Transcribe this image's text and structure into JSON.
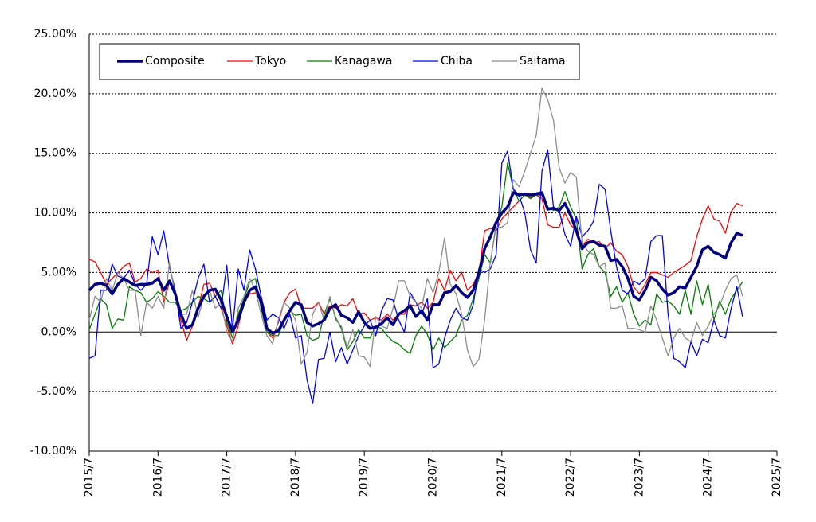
{
  "chart_data": {
    "type": "line",
    "categories": [
      "2015/7",
      null,
      null,
      null,
      null,
      null,
      null,
      null,
      null,
      null,
      null,
      null,
      "2016/7",
      null,
      null,
      null,
      null,
      null,
      null,
      null,
      null,
      null,
      null,
      null,
      "2017/7",
      null,
      null,
      null,
      null,
      null,
      null,
      null,
      null,
      null,
      null,
      null,
      "2018/7",
      null,
      null,
      null,
      null,
      null,
      null,
      null,
      null,
      null,
      null,
      null,
      "2019/7",
      null,
      null,
      null,
      null,
      null,
      null,
      null,
      null,
      null,
      null,
      null,
      "2020/7",
      null,
      null,
      null,
      null,
      null,
      null,
      null,
      null,
      null,
      null,
      null,
      "2021/7",
      null,
      null,
      null,
      null,
      null,
      null,
      null,
      null,
      null,
      null,
      null,
      "2022/7",
      null,
      null,
      null,
      null,
      null,
      null,
      null,
      null,
      null,
      null,
      null,
      "2023/7",
      null,
      null,
      null,
      null,
      null,
      null,
      null,
      null,
      null,
      null,
      null,
      "2024/7",
      null,
      null,
      null,
      null,
      null,
      null,
      null,
      null,
      null,
      null,
      null,
      "2025/7"
    ],
    "series": [
      {
        "name": "Composite",
        "color": "#000080",
        "width": 3.5,
        "values": [
          3.5,
          4.0,
          4.1,
          3.9,
          3.2,
          4.0,
          4.5,
          4.2,
          3.9,
          4.0,
          4.0,
          4.1,
          4.5,
          3.5,
          4.3,
          3.2,
          1.5,
          0.3,
          0.6,
          2.0,
          3.0,
          3.5,
          3.6,
          2.7,
          1.3,
          0.0,
          1.0,
          2.5,
          3.5,
          3.8,
          2.5,
          0.3,
          -0.1,
          0.1,
          1.0,
          1.8,
          2.5,
          2.3,
          0.8,
          0.5,
          0.7,
          1.0,
          2.0,
          2.3,
          1.4,
          1.2,
          0.8,
          1.7,
          0.8,
          0.3,
          0.4,
          0.7,
          1.2,
          0.6,
          1.5,
          1.8,
          2.2,
          1.3,
          1.8,
          1.0,
          2.3,
          2.3,
          3.3,
          3.4,
          3.9,
          3.3,
          2.9,
          3.5,
          5.0,
          7.0,
          8.0,
          9.2,
          10.0,
          10.5,
          11.7,
          11.5,
          11.6,
          11.5,
          11.6,
          11.7,
          10.3,
          10.4,
          10.2,
          10.8,
          9.8,
          8.5,
          7.0,
          7.5,
          7.6,
          7.3,
          7.2,
          6.0,
          6.1,
          5.5,
          4.5,
          3.0,
          2.7,
          3.5,
          4.6,
          4.3,
          3.6,
          3.1,
          3.3,
          3.8,
          3.7,
          4.6,
          5.5,
          6.9,
          7.2,
          6.7,
          6.5,
          6.2,
          7.5,
          8.3,
          8.1,
          null,
          null,
          null,
          null,
          null,
          null
        ]
      },
      {
        "name": "Tokyo",
        "color": "#ff0000",
        "width": 1.3,
        "values": [
          6.1,
          5.9,
          5.0,
          4.0,
          4.5,
          5.0,
          5.5,
          5.8,
          4.2,
          4.5,
          5.3,
          5.0,
          5.2,
          2.5,
          4.2,
          3.2,
          1.0,
          -0.7,
          0.5,
          2.0,
          4.0,
          4.1,
          3.0,
          2.0,
          0.5,
          -1.0,
          0.5,
          2.5,
          3.2,
          3.3,
          2.5,
          0.0,
          -0.5,
          0.8,
          2.5,
          3.3,
          3.6,
          2.0,
          2.0,
          2.0,
          2.5,
          1.5,
          2.2,
          2.0,
          2.3,
          2.2,
          2.8,
          1.5,
          1.6,
          1.0,
          1.2,
          1.0,
          1.5,
          1.0,
          1.5,
          1.5,
          2.3,
          2.2,
          2.5,
          2.0,
          2.5,
          4.5,
          3.5,
          5.2,
          4.3,
          5.0,
          3.5,
          4.0,
          5.0,
          8.5,
          8.7,
          8.5,
          9.5,
          10.0,
          10.5,
          11.0,
          11.5,
          11.3,
          11.5,
          11.2,
          9.0,
          8.8,
          8.8,
          10.0,
          9.0,
          8.5,
          7.2,
          7.8,
          7.5,
          7.6,
          7.0,
          7.5,
          6.8,
          6.5,
          5.5,
          3.8,
          3.2,
          4.0,
          5.0,
          5.0,
          4.8,
          4.6,
          5.0,
          5.3,
          5.6,
          6.0,
          8.0,
          9.5,
          10.6,
          9.5,
          9.3,
          8.3,
          10.1,
          10.8,
          10.6,
          null,
          null,
          null,
          null,
          null,
          null
        ]
      },
      {
        "name": "Kanagawa",
        "color": "#008000",
        "width": 1.3,
        "values": [
          0.2,
          1.5,
          2.8,
          2.3,
          0.3,
          1.1,
          1.0,
          3.8,
          3.5,
          3.3,
          2.5,
          2.8,
          3.4,
          3.0,
          2.5,
          2.5,
          1.8,
          2.0,
          2.5,
          3.0,
          2.8,
          2.5,
          3.0,
          3.5,
          0.8,
          -0.5,
          1.5,
          2.8,
          4.2,
          4.5,
          2.0,
          0.0,
          -0.3,
          -0.3,
          1.0,
          1.8,
          1.4,
          1.5,
          -0.3,
          -0.7,
          -0.5,
          1.5,
          2.8,
          1.2,
          0.3,
          -1.5,
          -0.8,
          0.2,
          -0.5,
          -0.5,
          0.5,
          0.3,
          -0.3,
          -0.8,
          -1.0,
          -1.5,
          -1.8,
          -0.3,
          0.5,
          -0.2,
          -1.5,
          -0.5,
          -1.3,
          -0.8,
          -0.3,
          1.0,
          1.4,
          2.8,
          4.5,
          6.5,
          5.8,
          9.0,
          10.5,
          14.2,
          12.0,
          11.0,
          11.5,
          11.2,
          11.5,
          11.5,
          10.5,
          10.2,
          10.5,
          11.8,
          10.5,
          9.5,
          5.3,
          6.5,
          7.0,
          5.5,
          5.0,
          3.0,
          3.8,
          2.5,
          3.3,
          1.5,
          0.5,
          1.0,
          0.6,
          3.2,
          2.5,
          2.6,
          2.2,
          1.5,
          3.5,
          1.5,
          4.3,
          2.3,
          4.0,
          1.0,
          2.6,
          1.5,
          2.8,
          3.5,
          4.2,
          null,
          null,
          null,
          null,
          null,
          null
        ]
      },
      {
        "name": "Chiba",
        "color": "#0000ff",
        "width": 1.3,
        "values": [
          -2.2,
          -2.0,
          3.5,
          3.5,
          5.7,
          4.7,
          4.5,
          5.2,
          4.0,
          3.5,
          4.0,
          8.0,
          6.5,
          8.5,
          5.5,
          3.5,
          0.3,
          0.8,
          2.5,
          4.5,
          5.7,
          2.5,
          3.0,
          2.0,
          5.6,
          0.2,
          5.3,
          3.5,
          6.9,
          5.3,
          3.0,
          1.0,
          1.5,
          1.2,
          0.3,
          1.5,
          -0.5,
          -0.3,
          -4.0,
          -6.0,
          -2.3,
          -2.2,
          0.0,
          -2.5,
          -1.3,
          -2.7,
          -1.5,
          -0.3,
          0.5,
          1.0,
          -0.3,
          1.8,
          2.8,
          2.7,
          1.0,
          0.0,
          3.3,
          2.5,
          1.5,
          2.8,
          -3.0,
          -2.7,
          -0.5,
          1.0,
          2.0,
          1.2,
          1.0,
          2.3,
          5.3,
          5.0,
          5.3,
          6.5,
          14.2,
          15.2,
          12.0,
          11.5,
          10.0,
          6.9,
          5.8,
          13.5,
          15.3,
          10.5,
          10.2,
          8.2,
          7.2,
          9.7,
          8.0,
          8.5,
          9.3,
          12.4,
          12.0,
          8.5,
          5.5,
          3.5,
          3.2,
          4.3,
          4.0,
          4.5,
          7.6,
          8.1,
          8.1,
          1.5,
          -2.2,
          -2.5,
          -3.0,
          -0.8,
          -2.0,
          -0.6,
          -0.9,
          1.0,
          -0.3,
          -0.5,
          2.0,
          3.8,
          1.3,
          null,
          null,
          null,
          null,
          null,
          null
        ]
      },
      {
        "name": "Saitama",
        "color": "#8c8c8c",
        "width": 1.3,
        "values": [
          1.0,
          3.0,
          2.5,
          4.5,
          3.5,
          5.0,
          4.5,
          3.5,
          3.5,
          -0.3,
          2.5,
          2.0,
          3.0,
          2.0,
          5.8,
          3.0,
          1.5,
          1.5,
          3.5,
          1.2,
          3.0,
          3.5,
          2.0,
          2.5,
          0.0,
          -0.8,
          2.0,
          3.0,
          4.5,
          3.5,
          1.5,
          -0.3,
          -1.0,
          1.0,
          2.5,
          2.0,
          1.0,
          -2.7,
          -1.7,
          1.5,
          2.5,
          1.0,
          3.0,
          1.0,
          0.5,
          -1.3,
          0.2,
          -2.0,
          -2.1,
          -2.9,
          1.3,
          0.5,
          0.3,
          2.0,
          4.3,
          4.3,
          3.0,
          2.5,
          2.0,
          4.5,
          3.3,
          5.0,
          7.9,
          4.0,
          3.2,
          1.5,
          -1.5,
          -2.9,
          -2.3,
          1.0,
          6.0,
          8.8,
          8.8,
          9.2,
          12.8,
          12.2,
          13.5,
          15.0,
          16.5,
          20.5,
          19.5,
          17.8,
          13.8,
          12.5,
          13.4,
          13.0,
          7.5,
          6.8,
          6.5,
          5.5,
          5.8,
          2.0,
          2.0,
          2.2,
          0.3,
          0.3,
          0.2,
          0.0,
          2.2,
          1.0,
          -0.5,
          -2.0,
          -0.5,
          0.3,
          -0.5,
          -0.8,
          0.8,
          -0.3,
          0.5,
          1.5,
          2.2,
          3.5,
          4.5,
          4.8,
          3.0,
          null,
          null,
          null,
          null,
          null,
          null
        ]
      }
    ],
    "ylim": [
      -10,
      25
    ],
    "yticks": [
      {
        "value": -10,
        "label": "-10.00%"
      },
      {
        "value": -5,
        "label": "-5.00%"
      },
      {
        "value": 0,
        "label": "0.00%"
      },
      {
        "value": 5,
        "label": "5.00%"
      },
      {
        "value": 10,
        "label": "10.00%"
      },
      {
        "value": 15,
        "label": "15.00%"
      },
      {
        "value": 20,
        "label": "20.00%"
      },
      {
        "value": 25,
        "label": "25.00%"
      }
    ],
    "grid": true,
    "legend": "top-left"
  }
}
